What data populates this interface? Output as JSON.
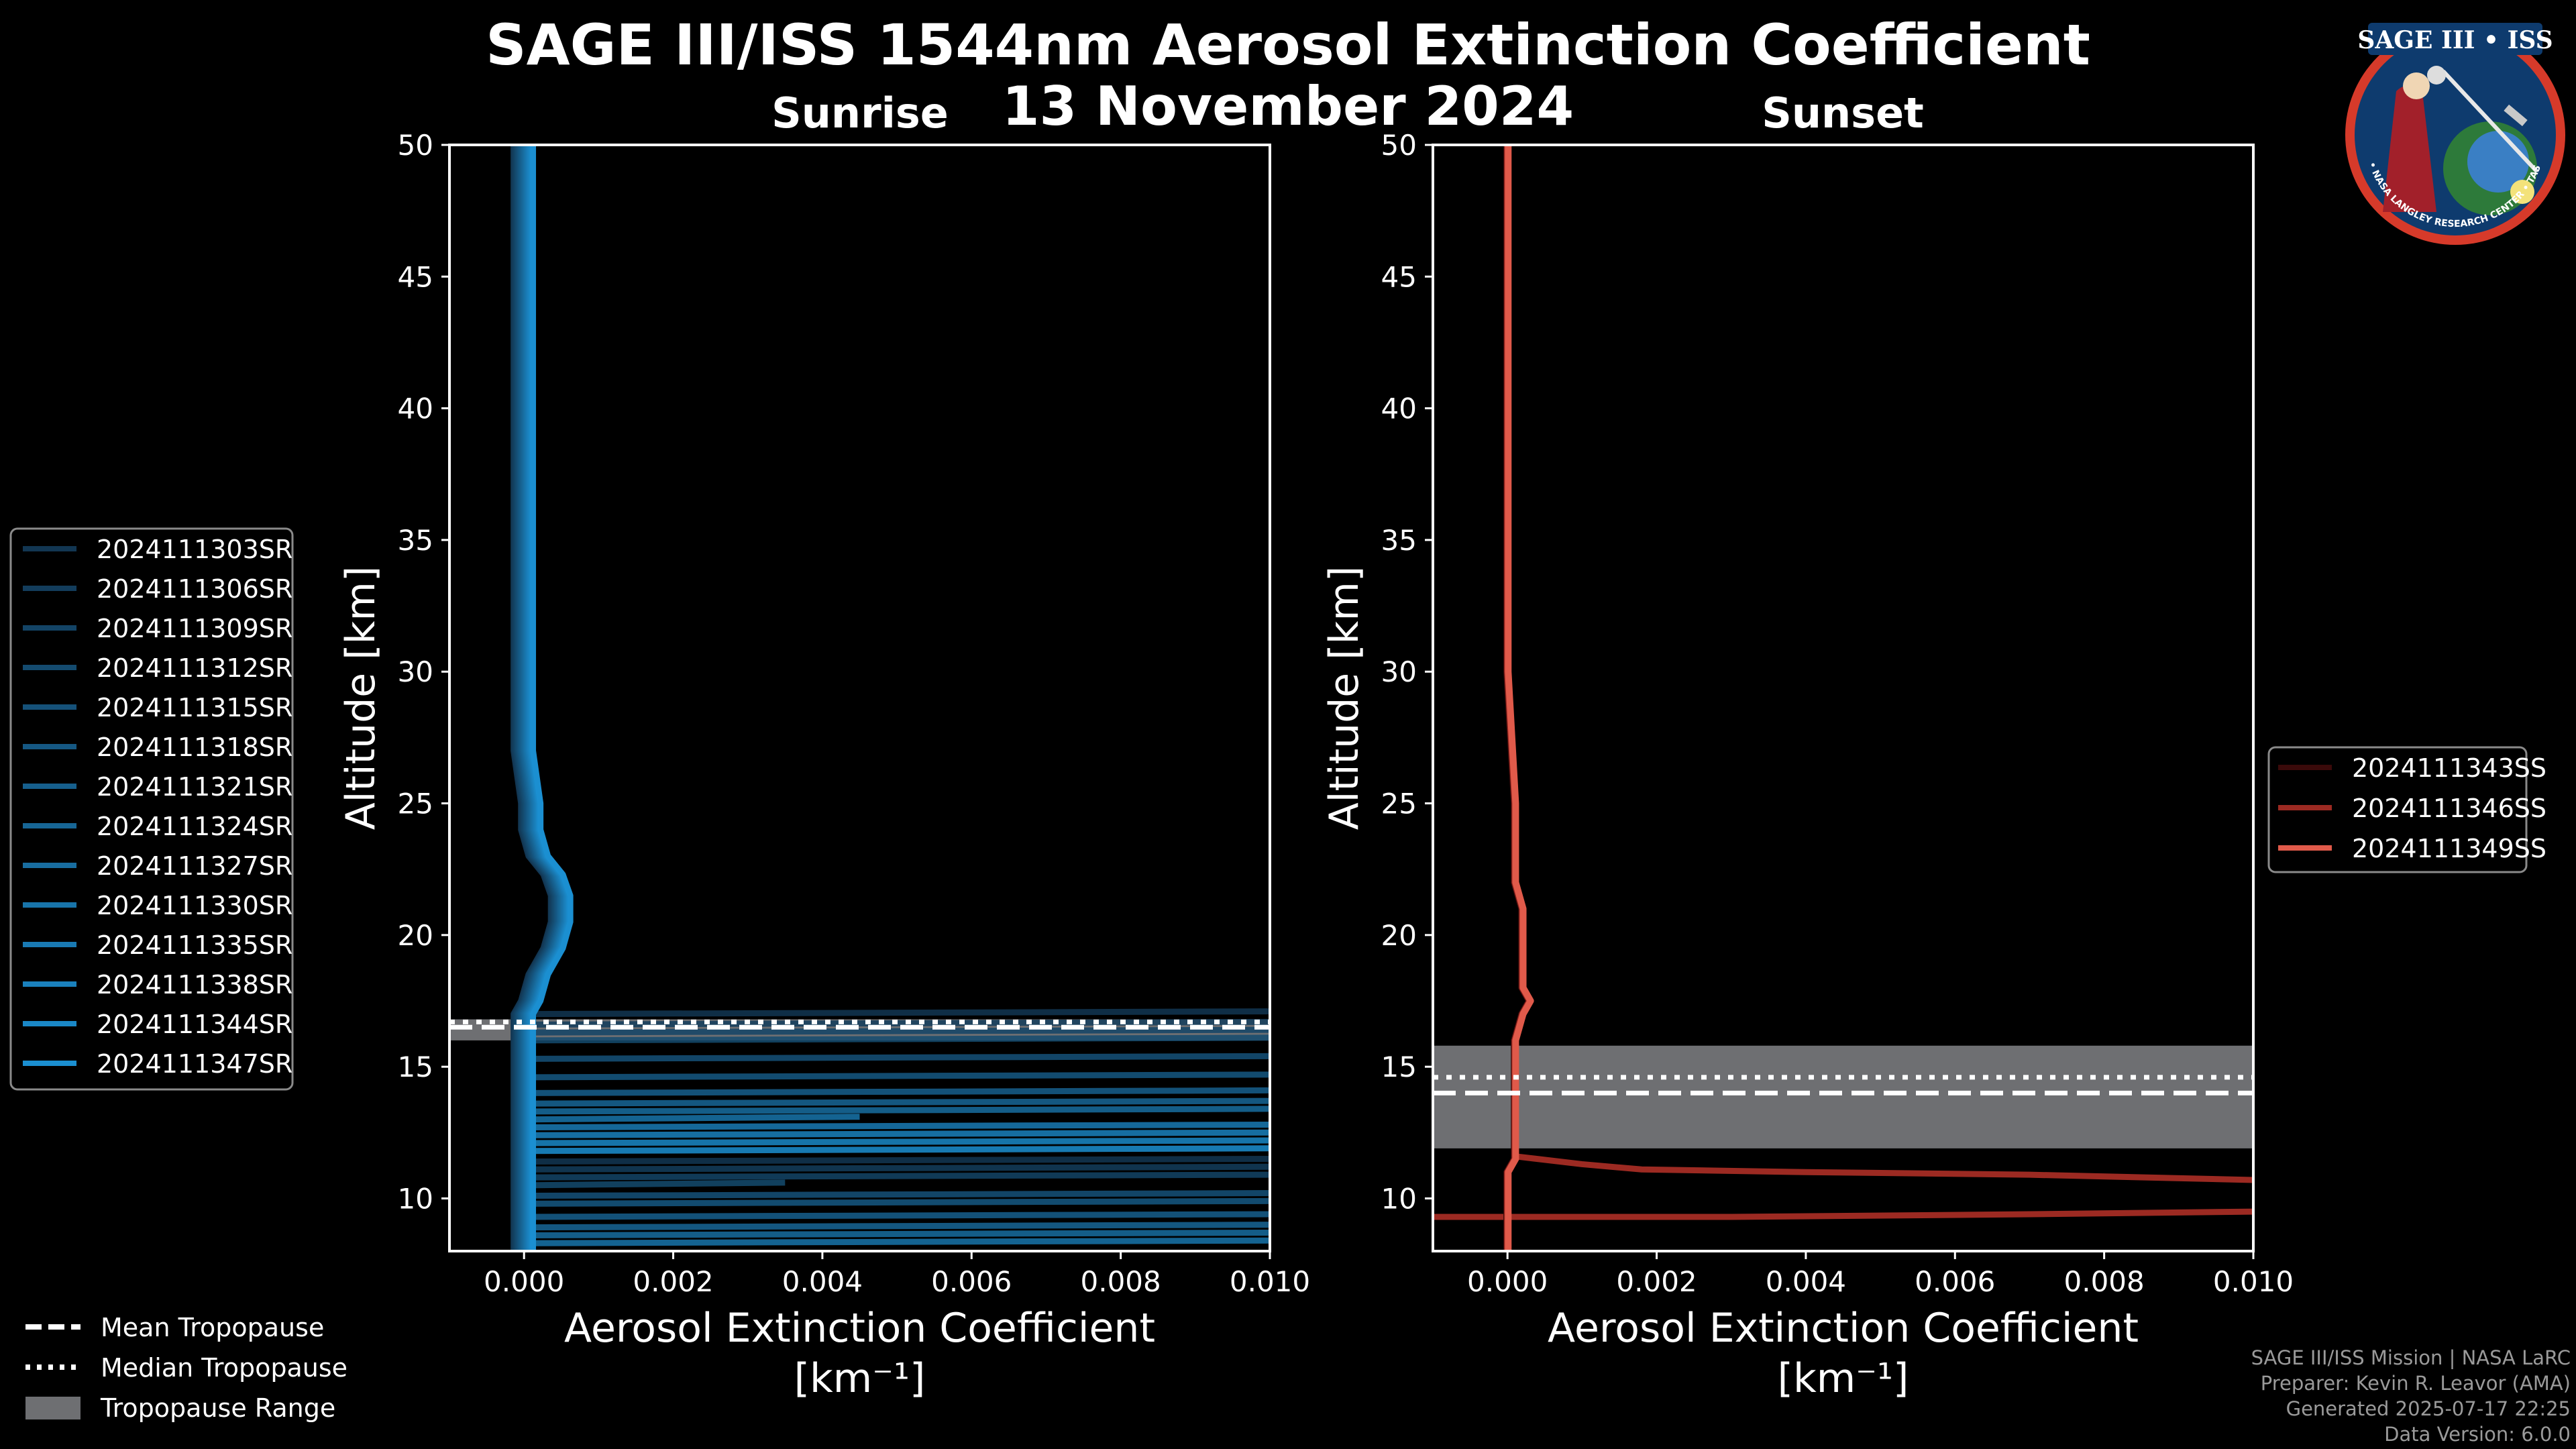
{
  "header": {
    "title": "SAGE III/ISS 1544nm Aerosol Extinction Coefficient",
    "date": "13 November 2024"
  },
  "colors": {
    "background": "#000000",
    "sunrise": "#1b8fd1",
    "sunset": "#e05a4a",
    "tropopause_range": "#6e6f72"
  },
  "chart_data": [
    {
      "type": "line",
      "title": "Sunrise",
      "xlabel": "Aerosol Extinction Coefficient",
      "xlabel_units": "[km⁻¹]",
      "ylabel": "Altitude [km]",
      "xlim": [
        -0.001,
        0.01
      ],
      "ylim": [
        8,
        50
      ],
      "xticks": [
        0,
        0.002,
        0.004,
        0.006,
        0.008,
        0.01
      ],
      "xtick_labels": [
        "0.000",
        "0.002",
        "0.004",
        "0.006",
        "0.008",
        "0.010"
      ],
      "yticks": [
        10,
        15,
        20,
        25,
        30,
        35,
        40,
        45,
        50
      ],
      "legend": [
        "2024111303SR",
        "2024111306SR",
        "2024111309SR",
        "2024111312SR",
        "2024111315SR",
        "2024111318SR",
        "2024111321SR",
        "2024111324SR",
        "2024111327SR",
        "2024111330SR",
        "2024111335SR",
        "2024111338SR",
        "2024111344SR",
        "2024111347SR"
      ],
      "tropopause": {
        "mean": 16.5,
        "median": 16.7,
        "range": [
          16.0,
          16.8
        ]
      },
      "profile": [
        [
          50,
          0.0
        ],
        [
          45,
          0.0
        ],
        [
          40,
          0.0
        ],
        [
          35,
          0.0
        ],
        [
          30,
          0.0
        ],
        [
          27,
          0.0
        ],
        [
          25,
          0.0001
        ],
        [
          24,
          0.0001
        ],
        [
          23,
          0.0002
        ],
        [
          22.3,
          0.0004
        ],
        [
          21.5,
          0.0005
        ],
        [
          20.5,
          0.0005
        ],
        [
          19.5,
          0.0004
        ],
        [
          18.5,
          0.0002
        ],
        [
          17.5,
          0.0001
        ],
        [
          17,
          0.0
        ],
        [
          16,
          0.0
        ],
        [
          15,
          0.0
        ],
        [
          13,
          0.0
        ],
        [
          11,
          0.0
        ],
        [
          9,
          0.0
        ],
        [
          8,
          0.0
        ]
      ],
      "noise_lines": [
        [
          17.0,
          0.01
        ],
        [
          16.6,
          0.01
        ],
        [
          16.3,
          0.01
        ],
        [
          16.0,
          0.01
        ],
        [
          15.3,
          0.01
        ],
        [
          14.6,
          0.01
        ],
        [
          14.0,
          0.01
        ],
        [
          13.6,
          0.01
        ],
        [
          13.3,
          0.01
        ],
        [
          13.0,
          0.0045
        ],
        [
          12.7,
          0.01
        ],
        [
          12.4,
          0.01
        ],
        [
          12.1,
          0.01
        ],
        [
          11.8,
          0.01
        ],
        [
          11.4,
          0.01
        ],
        [
          11.1,
          0.01
        ],
        [
          10.8,
          0.01
        ],
        [
          10.5,
          0.0035
        ],
        [
          10.1,
          0.01
        ],
        [
          9.8,
          0.01
        ],
        [
          9.3,
          0.01
        ],
        [
          8.9,
          0.01
        ],
        [
          8.6,
          0.01
        ],
        [
          8.3,
          0.01
        ]
      ]
    },
    {
      "type": "line",
      "title": "Sunset",
      "xlabel": "Aerosol Extinction Coefficient",
      "xlabel_units": "[km⁻¹]",
      "ylabel": "Altitude [km]",
      "xlim": [
        -0.001,
        0.01
      ],
      "ylim": [
        8,
        50
      ],
      "xticks": [
        0,
        0.002,
        0.004,
        0.006,
        0.008,
        0.01
      ],
      "xtick_labels": [
        "0.000",
        "0.002",
        "0.004",
        "0.006",
        "0.008",
        "0.010"
      ],
      "yticks": [
        10,
        15,
        20,
        25,
        30,
        35,
        40,
        45,
        50
      ],
      "legend": [
        "2024111343SS",
        "2024111346SS",
        "2024111349SS"
      ],
      "legend_colors": [
        "#3a0a0a",
        "#9c2a22",
        "#e05a4a"
      ],
      "tropopause": {
        "mean": 14.0,
        "median": 14.6,
        "range": [
          11.9,
          15.8
        ]
      },
      "profile": [
        [
          50,
          0.0
        ],
        [
          45,
          0.0
        ],
        [
          40,
          0.0
        ],
        [
          35,
          0.0
        ],
        [
          30,
          0.0
        ],
        [
          25,
          0.0001
        ],
        [
          22,
          0.0001
        ],
        [
          21,
          0.0002
        ],
        [
          20,
          0.0002
        ],
        [
          19,
          0.0002
        ],
        [
          18,
          0.0002
        ],
        [
          17.5,
          0.0003
        ],
        [
          17,
          0.0002
        ],
        [
          16,
          0.0001
        ],
        [
          14,
          0.0001
        ],
        [
          12,
          0.0001
        ],
        [
          11.5,
          0.0001
        ],
        [
          11,
          0.0
        ],
        [
          10,
          0.0
        ],
        [
          9,
          0.0
        ],
        [
          8,
          0.0
        ]
      ],
      "excursions": [
        [
          [
            11.6,
            0.0001
          ],
          [
            11.3,
            0.001
          ],
          [
            11.1,
            0.0018
          ],
          [
            11.0,
            0.004
          ],
          [
            10.9,
            0.007
          ],
          [
            10.7,
            0.01
          ]
        ],
        [
          [
            9.3,
            -0.001
          ],
          [
            9.3,
            0.003
          ],
          [
            9.4,
            0.007
          ],
          [
            9.5,
            0.01
          ]
        ]
      ]
    }
  ],
  "figure_legend": {
    "mean": "Mean Tropopause",
    "median": "Median Tropopause",
    "range": "Tropopause Range"
  },
  "footer": {
    "line1": "SAGE III/ISS Mission | NASA LaRC",
    "line2": "Preparer: Kevin R. Leavor (AMA)",
    "line3": "Generated 2025-07-17 22:25",
    "line4": "Data Version: 6.0.0"
  },
  "logo": {
    "top_text": "SAGE III • ISS",
    "ring_text": "BALL • NASA LANGLEY RESEARCH CENTER • TAS • ESA"
  }
}
